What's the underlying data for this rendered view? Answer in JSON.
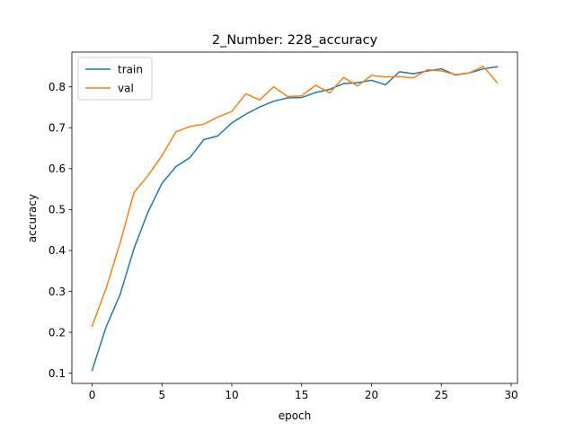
{
  "chart_data": {
    "type": "line",
    "title": "2_Number: 228_accuracy",
    "xlabel": "epoch",
    "ylabel": "accuracy",
    "xlim": [
      -1.45,
      30.45
    ],
    "ylim": [
      0.075,
      0.885
    ],
    "xticks": [
      0,
      5,
      10,
      15,
      20,
      25,
      30
    ],
    "yticks": [
      0.1,
      0.2,
      0.3,
      0.4,
      0.5,
      0.6,
      0.7,
      0.8
    ],
    "grid": false,
    "legend_position": "top-left",
    "x": [
      0,
      1,
      2,
      3,
      4,
      5,
      6,
      7,
      8,
      9,
      10,
      11,
      12,
      13,
      14,
      15,
      16,
      17,
      18,
      19,
      20,
      21,
      22,
      23,
      24,
      25,
      26,
      27,
      28,
      29
    ],
    "series": [
      {
        "name": "train",
        "color": "#1f77b4",
        "values": [
          0.107,
          0.213,
          0.292,
          0.405,
          0.494,
          0.564,
          0.605,
          0.627,
          0.671,
          0.68,
          0.712,
          0.733,
          0.751,
          0.765,
          0.773,
          0.774,
          0.786,
          0.794,
          0.808,
          0.81,
          0.816,
          0.805,
          0.837,
          0.832,
          0.839,
          0.844,
          0.829,
          0.834,
          0.844,
          0.849
        ]
      },
      {
        "name": "val",
        "color": "#ff7f0e",
        "values": [
          0.215,
          0.307,
          0.418,
          0.542,
          0.583,
          0.632,
          0.69,
          0.703,
          0.709,
          0.726,
          0.74,
          0.783,
          0.768,
          0.8,
          0.776,
          0.778,
          0.804,
          0.785,
          0.823,
          0.802,
          0.828,
          0.824,
          0.825,
          0.822,
          0.842,
          0.839,
          0.83,
          0.834,
          0.85,
          0.81
        ]
      }
    ]
  }
}
